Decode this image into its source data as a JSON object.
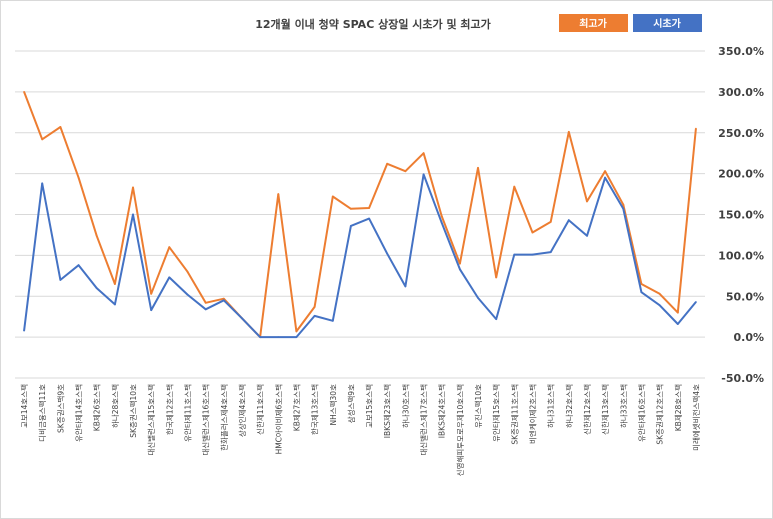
{
  "chart_data": {
    "type": "line",
    "title": "12개월 이내 청약 SPAC 상장일 시초가 및 최고가",
    "ylim": [
      -50,
      350
    ],
    "yticks": [
      -50,
      0,
      50,
      100,
      150,
      200,
      250,
      300,
      350
    ],
    "ytick_labels": [
      "-50.0%",
      "0.0%",
      "50.0%",
      "100.0%",
      "150.0%",
      "200.0%",
      "250.0%",
      "300.0%",
      "350.0%"
    ],
    "grid": true,
    "legend_position": "top-right",
    "categories": [
      "교보14호스팩",
      "디비금융스팩11호",
      "SK증권스팩9호",
      "유안타제14호스팩",
      "KB제26호스팩",
      "하나28호스팩",
      "SK증권스팩10호",
      "대신밸런스제15호스팩",
      "한국제12호스팩",
      "유안타제11호스팩",
      "대신밸런스제16호스팩",
      "한화플러스제4호스팩",
      "상상인제4호스팩",
      "신한제11호스팩",
      "HMC아이비제6호스팩",
      "KB제27호스팩",
      "한국제13호스팩",
      "NH스팩30호",
      "삼성스팩9호",
      "교보15호스팩",
      "IBKS제23호스팩",
      "하나30호스팩",
      "대신밸런스제17호스팩",
      "IBKS제24호스팩",
      "신영해피투모로우제10호스팩",
      "유진스팩10호",
      "유안타제15호스팩",
      "SK증권제11호스팩",
      "비엔케이제2호스팩",
      "하나31호스팩",
      "하나32호스팩",
      "신한제12호스팩",
      "신한제13호스팩",
      "하나33호스팩",
      "유안타제16호스팩",
      "SK증권제12호스팩",
      "KB제28호스팩",
      "미래에셋비전스팩4호"
    ],
    "series": [
      {
        "name": "최고가",
        "color": "#ed7d31",
        "values": [
          300,
          242,
          257,
          195,
          124,
          65,
          183,
          53,
          110,
          80,
          42,
          47,
          23,
          0,
          175,
          7,
          37,
          172,
          157,
          158,
          212,
          203,
          225,
          148,
          90,
          207,
          73,
          184,
          128,
          141,
          251,
          166,
          203,
          162,
          65,
          53,
          30,
          255
        ]
      },
      {
        "name": "시초가",
        "color": "#4472c4",
        "values": [
          8,
          188,
          70,
          88,
          60,
          40,
          150,
          33,
          73,
          52,
          34,
          45,
          23,
          0,
          0,
          0,
          26,
          20,
          136,
          145,
          102,
          62,
          199,
          140,
          83,
          48,
          22,
          101,
          101,
          104,
          143,
          124,
          195,
          157,
          55,
          39,
          16,
          43
        ]
      }
    ]
  }
}
